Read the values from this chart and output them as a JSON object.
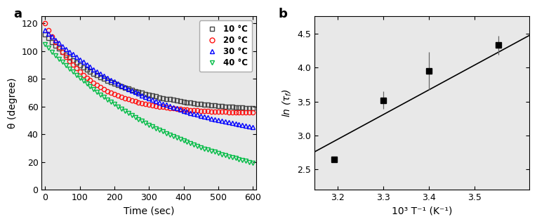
{
  "panel_a": {
    "title_label": "a",
    "xlabel": "Time (sec)",
    "ylabel": "θ (degree)",
    "xlim": [
      -10,
      610
    ],
    "ylim": [
      0,
      125
    ],
    "yticks": [
      0,
      20,
      40,
      60,
      80,
      100,
      120
    ],
    "xticks": [
      0,
      100,
      200,
      300,
      400,
      500,
      600
    ],
    "series": [
      {
        "label": "10 °C",
        "color": "#444444",
        "marker": "s",
        "A": 56.0,
        "B": 56.0,
        "tau": 200.0,
        "t0": 0,
        "start_y": 112.0
      },
      {
        "label": "20 °C",
        "color": "#ff1111",
        "marker": "o",
        "A": 55.0,
        "B": 65.0,
        "tau": 130.0,
        "t0": 0,
        "start_y": 119.0
      },
      {
        "label": "30 °C",
        "color": "#0000ff",
        "marker": "^",
        "A": 30.0,
        "B": 85.0,
        "tau": 350.0,
        "t0": 0,
        "start_y": 116.0
      },
      {
        "label": "40 °C",
        "color": "#00bb44",
        "marker": "v",
        "A": -5.0,
        "B": 110.0,
        "tau": 400.0,
        "t0": 0,
        "start_y": 105.0
      }
    ],
    "n_points": 61,
    "t_interval": 10,
    "bg_color": "#e8e8e8"
  },
  "panel_b": {
    "title_label": "b",
    "xlabel": "10³ T⁻¹ (K⁻¹)",
    "ylabel": "ln (τ",
    "ylabel_suffix": "f",
    "xlim": [
      3.15,
      3.62
    ],
    "ylim": [
      2.2,
      4.75
    ],
    "xticks": [
      3.2,
      3.3,
      3.4,
      3.5
    ],
    "yticks": [
      2.5,
      3.0,
      3.5,
      4.0,
      4.5
    ],
    "data_x": [
      3.193,
      3.3,
      3.401,
      3.552
    ],
    "data_y": [
      2.65,
      3.52,
      3.95,
      4.33
    ],
    "data_yerr": [
      0.04,
      0.13,
      0.28,
      0.14
    ],
    "fit_x": [
      3.15,
      3.62
    ],
    "fit_y": [
      2.76,
      4.47
    ],
    "marker": "s",
    "markersize": 6,
    "color": "black",
    "bg_color": "#e8e8e8"
  }
}
